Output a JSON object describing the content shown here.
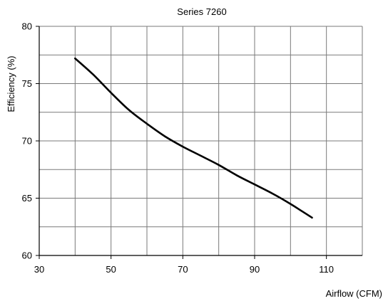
{
  "chart_data": {
    "type": "line",
    "title": "Series 7260",
    "xlabel": "Airflow (CFM)",
    "ylabel": "Efficiency (%)",
    "xlim": [
      30,
      120
    ],
    "ylim": [
      60,
      80
    ],
    "x_ticks": [
      30,
      50,
      70,
      90,
      110
    ],
    "y_ticks": [
      60,
      65,
      70,
      75,
      80
    ],
    "x_minor_step": 10,
    "y_minor_step": 2.5,
    "grid": true,
    "line_color": "#000000",
    "series": [
      {
        "x": [
          40,
          45,
          50,
          55,
          60,
          65,
          70,
          75,
          80,
          85,
          90,
          95,
          100,
          103,
          106
        ],
        "y": [
          77.2,
          75.8,
          74.2,
          72.7,
          71.5,
          70.4,
          69.5,
          68.7,
          67.9,
          67.0,
          66.2,
          65.4,
          64.5,
          63.9,
          63.3
        ]
      }
    ]
  }
}
